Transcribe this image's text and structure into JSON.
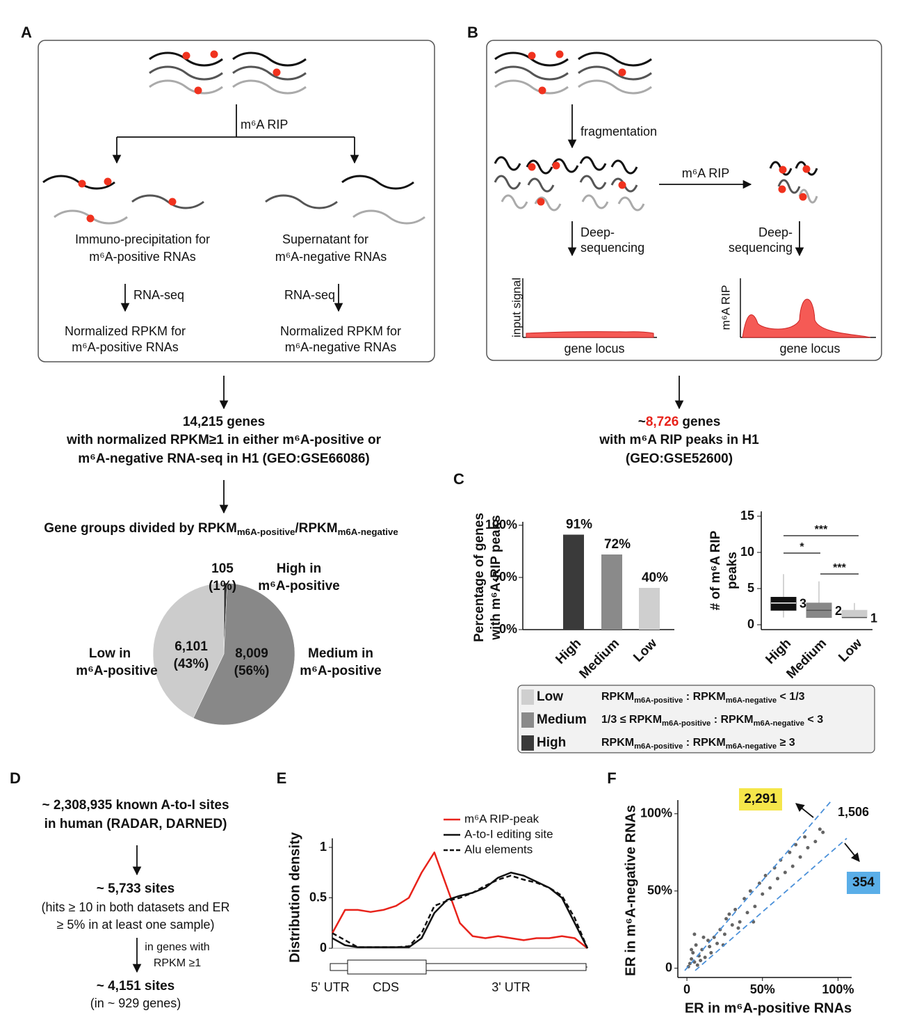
{
  "panel_a": {
    "letter": "A",
    "rip_label": "m⁶A RIP",
    "left": {
      "title": [
        "Immuno-precipitation for",
        "m⁶A-positive RNAs"
      ],
      "step": "RNA-seq",
      "result": [
        "Normalized RPKM for",
        "m⁶A-positive RNAs"
      ]
    },
    "right": {
      "title": [
        "Supernatant for",
        "m⁶A-negative RNAs"
      ],
      "step": "RNA-seq",
      "result": [
        "Normalized RPKM for",
        "m⁶A-negative RNAs"
      ]
    },
    "summary": [
      "14,215 genes",
      "with normalized RPKM≥1 in either m⁶A-positive or",
      "m⁶A-negative RNA-seq in H1 (GEO:GSE66086)"
    ],
    "groups_title": [
      "Gene groups divided by RPKM",
      "m6A-positive",
      "/RPKM",
      "m6A-negative"
    ],
    "pie": {
      "type": "pie",
      "values": [
        105,
        8009,
        6101
      ],
      "value_labels": [
        "105",
        "8,009",
        "6,101"
      ],
      "percent_labels": [
        "(1%)",
        "(56%)",
        "(43%)"
      ],
      "names": [
        [
          "High in",
          "m⁶A-positive"
        ],
        [
          "Medium in",
          "m⁶A-positive"
        ],
        [
          "Low in",
          "m⁶A-positive"
        ]
      ],
      "colors": [
        "#333333",
        "#888888",
        "#cccccc"
      ]
    }
  },
  "panel_b": {
    "letter": "B",
    "fragmentation": "fragmentation",
    "rip_label": "m⁶A RIP",
    "seq_left": [
      "Deep-",
      "sequencing"
    ],
    "seq_right": [
      "Deep-",
      "sequencing"
    ],
    "input_axis": "input signal",
    "rip_axis": "m⁶A RIP",
    "locus_left": "gene locus",
    "locus_right": "gene locus",
    "summary": {
      "prefix": "~",
      "count": "8,726",
      "suffix": "genes",
      "lines": [
        "with m⁶A RIP peaks in H1",
        "(GEO:GSE52600)"
      ]
    }
  },
  "panel_c": {
    "letter": "C",
    "bar_chart": {
      "type": "bar",
      "categories": [
        "High",
        "Medium",
        "Low"
      ],
      "values": [
        91,
        72,
        40
      ],
      "value_labels": [
        "91%",
        "72%",
        "40%"
      ],
      "colors": [
        "#3a3a3a",
        "#8a8a8a",
        "#cfcfcf"
      ],
      "ylim": [
        0,
        100
      ],
      "yticks": [
        {
          "value": 0,
          "label": "0%"
        },
        {
          "value": 50,
          "label": "50%"
        },
        {
          "value": 100,
          "label": "100%"
        }
      ],
      "ylabel": [
        "Percentage of genes",
        "with m⁶A-RIP peaks"
      ]
    },
    "box_chart": {
      "type": "box",
      "categories": [
        "High",
        "Medium",
        "Low"
      ],
      "boxes": [
        {
          "whisker_low": 1,
          "q1": 2,
          "median": 3,
          "q3": 3.8,
          "whisker_high": 7
        },
        {
          "whisker_low": 1,
          "q1": 1,
          "median": 2,
          "q3": 3,
          "whisker_high": 6
        },
        {
          "whisker_low": 1,
          "q1": 1,
          "median": 1,
          "q3": 2,
          "whisker_high": 3
        }
      ],
      "value_labels": [
        "3",
        "2",
        "1"
      ],
      "colors": [
        "#111111",
        "#888888",
        "#cccccc"
      ],
      "ylim": [
        0,
        15
      ],
      "yticks": [
        0,
        5,
        10,
        15
      ],
      "ylabel": [
        "# of m⁶A RIP",
        "peaks"
      ],
      "significance": [
        "***",
        "*",
        "***"
      ]
    },
    "legend": [
      {
        "name": "Low",
        "color": "#cfcfcf",
        "desc": [
          "RPKM",
          "m6A-positive",
          " : RPKM",
          "m6A-negative",
          " < 1/3"
        ]
      },
      {
        "name": "Medium",
        "color": "#8a8a8a",
        "desc": [
          "1/3 ≤ RPKM",
          "m6A-positive",
          " : RPKM",
          "m6A-negative",
          " < 3"
        ]
      },
      {
        "name": "High",
        "color": "#3a3a3a",
        "desc": [
          "RPKM",
          "m6A-positive",
          " : RPKM",
          "m6A-negative",
          " ≥ 3"
        ]
      }
    ]
  },
  "panel_d": {
    "letter": "D",
    "step1": [
      "~ 2,308,935 known A-to-I sites",
      "in human (RADAR,  DARNED)"
    ],
    "step2": [
      "~ 5,733 sites",
      "(hits ≥ 10 in both datasets and ER",
      "≥ 5% in at least one sample)"
    ],
    "filter": [
      "in genes with",
      "RPKM ≥1"
    ],
    "step3": [
      "~ 4,151 sites",
      "(in ~ 929 genes)"
    ]
  },
  "panel_e": {
    "letter": "E",
    "chart": {
      "type": "line",
      "x": [
        0,
        0.05,
        0.1,
        0.15,
        0.2,
        0.25,
        0.3,
        0.35,
        0.4,
        0.45,
        0.5,
        0.55,
        0.6,
        0.65,
        0.7,
        0.75,
        0.8,
        0.85,
        0.9,
        0.95,
        1
      ],
      "series": [
        {
          "name": "m⁶A RIP-peak",
          "color": "#e8231b",
          "dash": false,
          "values": [
            0.15,
            0.38,
            0.38,
            0.36,
            0.38,
            0.42,
            0.5,
            0.75,
            0.95,
            0.6,
            0.25,
            0.12,
            0.1,
            0.12,
            0.1,
            0.08,
            0.1,
            0.1,
            0.12,
            0.1,
            0
          ]
        },
        {
          "name": "A-to-I editing site",
          "color": "#111111",
          "dash": false,
          "values": [
            0.1,
            0.03,
            0.01,
            0.01,
            0.01,
            0.01,
            0.01,
            0.1,
            0.35,
            0.48,
            0.52,
            0.55,
            0.6,
            0.7,
            0.75,
            0.72,
            0.66,
            0.6,
            0.5,
            0.25,
            0
          ]
        },
        {
          "name": "Alu elements",
          "color": "#111111",
          "dash": true,
          "values": [
            0.15,
            0.08,
            0.01,
            0.01,
            0.01,
            0.01,
            0.02,
            0.15,
            0.42,
            0.47,
            0.5,
            0.55,
            0.62,
            0.68,
            0.72,
            0.68,
            0.65,
            0.6,
            0.52,
            0.3,
            0
          ]
        }
      ],
      "xlim": [
        0,
        1
      ],
      "ylim": [
        0,
        1
      ],
      "yticks": [
        0,
        0.5,
        1
      ],
      "ylabel": "Distribution density",
      "regions": [
        "5' UTR",
        "CDS",
        "3' UTR"
      ]
    }
  },
  "panel_f": {
    "letter": "F",
    "chart": {
      "type": "scatter",
      "x": [
        2,
        3,
        5,
        4,
        8,
        10,
        12,
        6,
        15,
        18,
        20,
        22,
        25,
        9,
        14,
        30,
        28,
        35,
        32,
        40,
        38,
        45,
        42,
        50,
        48,
        55,
        52,
        60,
        58,
        65,
        62,
        70,
        68,
        75,
        72,
        80,
        78,
        85,
        88,
        90,
        3,
        7,
        11,
        16,
        24,
        26,
        34,
        44,
        5,
        1
      ],
      "y": [
        3,
        6,
        4,
        10,
        8,
        12,
        7,
        15,
        14,
        20,
        16,
        25,
        22,
        5,
        18,
        28,
        35,
        30,
        38,
        36,
        45,
        40,
        50,
        48,
        55,
        52,
        60,
        58,
        65,
        62,
        70,
        66,
        75,
        72,
        80,
        78,
        85,
        82,
        90,
        88,
        12,
        2,
        20,
        10,
        15,
        32,
        26,
        30,
        22,
        1
      ],
      "color": "#222222",
      "xlim": [
        -6,
        109
      ],
      "ylim": [
        -6,
        110
      ],
      "xticks": [
        0,
        {
          "value": 50,
          "label": "50%"
        },
        {
          "value": 100,
          "label": "100%"
        }
      ],
      "yticks": [
        0,
        {
          "value": 50,
          "label": "50%"
        },
        {
          "value": 100,
          "label": "100%"
        }
      ],
      "xlabel": "ER in m⁶A-positive RNAs",
      "ylabel": "ER in m⁶A-negative RNAs",
      "annotations": {
        "above": "2,291",
        "diagonal": "1,506",
        "below": "354"
      }
    }
  }
}
